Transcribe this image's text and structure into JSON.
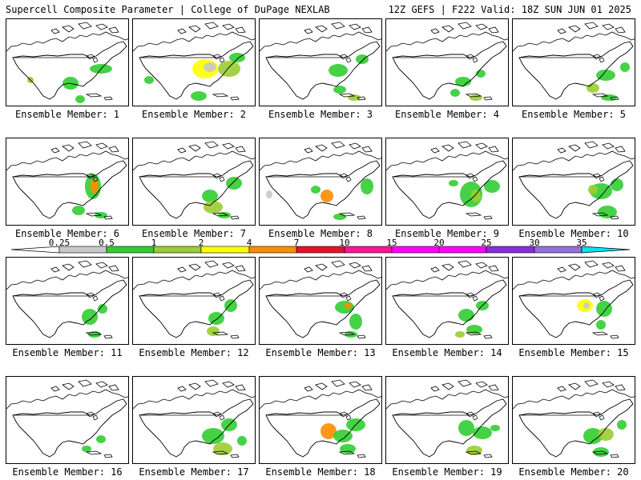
{
  "header": {
    "left": "Supercell Composite Parameter | College of DuPage NEXLAB",
    "right": "12Z GEFS | F222 Valid: 18Z SUN JUN 01 2025"
  },
  "panels": [
    {
      "label": "Ensemble Member: 1"
    },
    {
      "label": "Ensemble Member: 2"
    },
    {
      "label": "Ensemble Member: 3"
    },
    {
      "label": "Ensemble Member: 4"
    },
    {
      "label": "Ensemble Member: 5"
    },
    {
      "label": "Ensemble Member: 6"
    },
    {
      "label": "Ensemble Member: 7"
    },
    {
      "label": "Ensemble Member: 8"
    },
    {
      "label": "Ensemble Member: 9"
    },
    {
      "label": "Ensemble Member: 10"
    },
    {
      "label": "Ensemble Member: 11"
    },
    {
      "label": "Ensemble Member: 12"
    },
    {
      "label": "Ensemble Member: 13"
    },
    {
      "label": "Ensemble Member: 14"
    },
    {
      "label": "Ensemble Member: 15"
    },
    {
      "label": "Ensemble Member: 16"
    },
    {
      "label": "Ensemble Member: 17"
    },
    {
      "label": "Ensemble Member: 18"
    },
    {
      "label": "Ensemble Member: 19"
    },
    {
      "label": "Ensemble Member: 20"
    }
  ],
  "colorbar": {
    "ticks": [
      "0.25",
      "0.5",
      "1",
      "2",
      "4",
      "7",
      "10",
      "15",
      "20",
      "25",
      "30",
      "35"
    ],
    "colors": [
      "#c8c8c8",
      "#32cd32",
      "#9acd32",
      "#ffff00",
      "#ff8c00",
      "#e8102a",
      "#ff1493",
      "#ff00ff",
      "#ff00ff",
      "#8a2be2",
      "#9370db",
      "#00e5ee"
    ]
  }
}
